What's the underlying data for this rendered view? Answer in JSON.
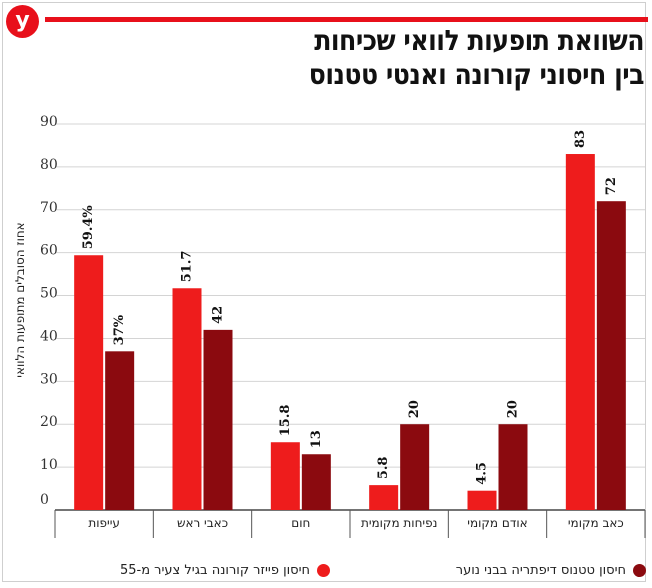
{
  "brand": {
    "logo_letter": "y",
    "accent_color": "#e8101b"
  },
  "title": {
    "line1": "השוואת תופעות לוואי שכיחות",
    "line2": "בין חיסוני קורונה ואנטי טטנוס"
  },
  "chart_data": {
    "type": "bar",
    "title": "השוואת תופעות לוואי שכיחות בין חיסוני קורונה ואנטי טטנוס",
    "ylabel": "אחוז הסובלים מתופעות הלוואי",
    "xlabel": "",
    "ylim": [
      0,
      90
    ],
    "yticks": [
      0,
      10,
      20,
      30,
      40,
      50,
      60,
      70,
      80,
      90
    ],
    "grid": true,
    "legend_position": "bottom",
    "categories": [
      "עייפות",
      "כאבי ראש",
      "חום",
      "נפיחות מקומית",
      "אודם מקומי",
      "כאב  מקומי"
    ],
    "series": [
      {
        "name": "חיסון פייזר קורונה בגיל צעיר מ-55",
        "color": "#ee1c1c",
        "values": [
          59.4,
          51.7,
          15.8,
          5.8,
          4.5,
          83
        ],
        "labels": [
          "59.4%",
          "51.7",
          "15.8",
          "5.8",
          "4.5",
          "83"
        ]
      },
      {
        "name": "חיסון טטנוס דיפתריה בבני נוער",
        "color": "#8b0a0f",
        "values": [
          37,
          42,
          13,
          20,
          20,
          72
        ],
        "labels": [
          "37%",
          "42",
          "13",
          "20",
          "20",
          "72"
        ]
      }
    ]
  }
}
